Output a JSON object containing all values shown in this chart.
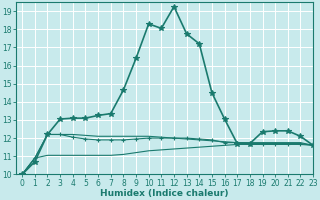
{
  "title": "",
  "xlabel": "Humidex (Indice chaleur)",
  "ylabel": "",
  "xlim": [
    -0.5,
    23
  ],
  "ylim": [
    10,
    19.5
  ],
  "yticks": [
    10,
    11,
    12,
    13,
    14,
    15,
    16,
    17,
    18,
    19
  ],
  "xticks": [
    0,
    1,
    2,
    3,
    4,
    5,
    6,
    7,
    8,
    9,
    10,
    11,
    12,
    13,
    14,
    15,
    16,
    17,
    18,
    19,
    20,
    21,
    22,
    23
  ],
  "background_color": "#c8eaec",
  "grid_color": "#ffffff",
  "line_color": "#1a7a6e",
  "curves": [
    {
      "x": [
        0,
        1,
        2,
        3,
        4,
        5,
        6,
        7,
        8,
        9,
        10,
        11,
        12,
        13,
        14,
        15,
        16,
        17,
        18,
        19,
        20,
        21,
        22,
        23
      ],
      "y": [
        10.0,
        10.7,
        12.2,
        13.05,
        13.1,
        13.1,
        13.25,
        13.35,
        14.65,
        16.4,
        18.3,
        18.05,
        19.25,
        17.75,
        17.2,
        14.5,
        13.05,
        11.7,
        11.7,
        12.35,
        12.4,
        12.4,
        12.1,
        11.6
      ],
      "marker": "*",
      "linestyle": "-",
      "linewidth": 1.2,
      "markersize": 4
    },
    {
      "x": [
        0,
        1,
        2,
        3,
        4,
        5,
        6,
        7,
        8,
        9,
        10,
        11,
        12,
        13,
        14,
        15,
        16,
        17,
        18,
        19,
        20,
        21,
        22,
        23
      ],
      "y": [
        10.0,
        10.9,
        12.2,
        12.2,
        12.05,
        11.95,
        11.9,
        11.9,
        11.9,
        11.95,
        12.0,
        12.0,
        12.0,
        12.0,
        11.95,
        11.9,
        11.75,
        11.75,
        11.7,
        11.7,
        11.7,
        11.7,
        11.7,
        11.6
      ],
      "marker": "+",
      "linestyle": "-",
      "linewidth": 0.8,
      "markersize": 3
    },
    {
      "x": [
        0,
        1,
        2,
        3,
        4,
        5,
        6,
        7,
        8,
        9,
        10,
        11,
        12,
        13,
        14,
        15,
        16,
        17,
        18,
        19,
        20,
        21,
        22,
        23
      ],
      "y": [
        10.0,
        10.9,
        12.2,
        12.2,
        12.2,
        12.15,
        12.1,
        12.1,
        12.1,
        12.1,
        12.1,
        12.05,
        12.0,
        11.95,
        11.9,
        11.85,
        11.8,
        11.75,
        11.75,
        11.75,
        11.75,
        11.75,
        11.75,
        11.6
      ],
      "marker": null,
      "linestyle": "-",
      "linewidth": 0.8,
      "markersize": 0
    },
    {
      "x": [
        0,
        1,
        2,
        3,
        4,
        5,
        6,
        7,
        8,
        9,
        10,
        11,
        12,
        13,
        14,
        15,
        16,
        17,
        18,
        19,
        20,
        21,
        22,
        23
      ],
      "y": [
        10.0,
        10.9,
        11.05,
        11.05,
        11.05,
        11.05,
        11.05,
        11.05,
        11.1,
        11.2,
        11.3,
        11.35,
        11.4,
        11.45,
        11.5,
        11.55,
        11.6,
        11.65,
        11.65,
        11.65,
        11.65,
        11.65,
        11.65,
        11.6
      ],
      "marker": null,
      "linestyle": "-",
      "linewidth": 0.8,
      "markersize": 0
    }
  ],
  "tick_fontsize": 5.5,
  "xlabel_fontsize": 6.5,
  "tick_color": "#1a7a6e",
  "spine_color": "#1a7a6e"
}
